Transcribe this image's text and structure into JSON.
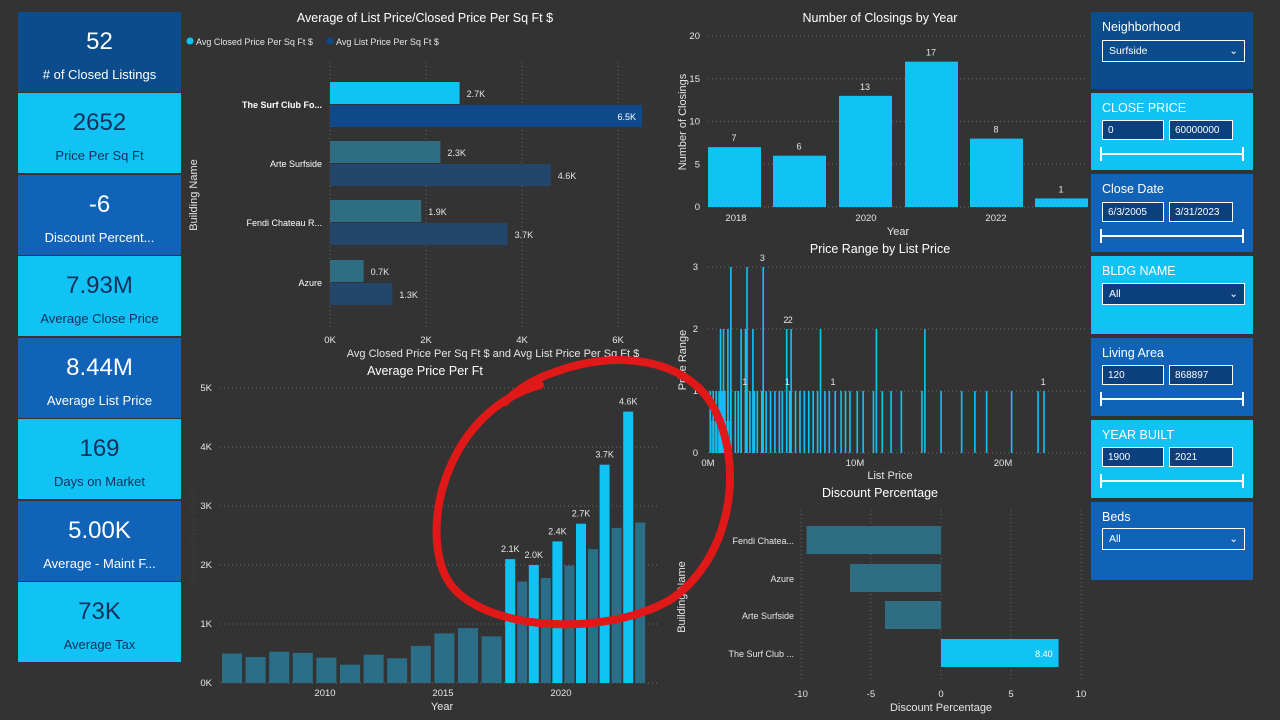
{
  "kpis": [
    {
      "value": "52",
      "label": "# of Closed Listings"
    },
    {
      "value": "2652",
      "label": "Price Per Sq Ft"
    },
    {
      "value": "-6",
      "label": "Discount Percent..."
    },
    {
      "value": "7.93M",
      "label": "Average Close Price"
    },
    {
      "value": "8.44M",
      "label": "Average List Price"
    },
    {
      "value": "169",
      "label": "Days on Market"
    },
    {
      "value": "5.00K",
      "label": "Average - Maint F..."
    },
    {
      "value": "73K",
      "label": "Average Tax"
    }
  ],
  "filters": {
    "neighborhood": {
      "label": "Neighborhood",
      "value": "Surfside"
    },
    "close_price": {
      "label": "CLOSE PRICE",
      "min": "0",
      "max": "60000000"
    },
    "close_date": {
      "label": "Close Date",
      "min": "6/3/2005",
      "max": "3/31/2023"
    },
    "bldg_name": {
      "label": "BLDG NAME",
      "value": "All"
    },
    "living_area": {
      "label": "Living Area",
      "min": "120",
      "max": "868897"
    },
    "year_built": {
      "label": "YEAR BUILT",
      "min": "1900",
      "max": "2021"
    },
    "beds": {
      "label": "Beds",
      "value": "All"
    }
  },
  "colors": {
    "cyan": "#11c3f5",
    "navy": "#0f4a8a",
    "teal": "#2b6e87",
    "annotation": "#e01818"
  },
  "chart_data": [
    {
      "type": "bar",
      "orientation": "horizontal",
      "title": "Average of List Price/Closed Price Per Sq Ft $",
      "xlabel": "Avg Closed Price Per Sq Ft $ and Avg List Price Per Sq Ft $",
      "ylabel": "Building Name",
      "legend": [
        "Avg Closed Price Per Sq Ft $",
        "Avg List Price Per Sq Ft $"
      ],
      "categories": [
        "The Surf Club Fo...",
        "Arte Surfside",
        "Fendi Chateau R...",
        "Azure"
      ],
      "series": [
        {
          "name": "Avg Closed Price Per Sq Ft $",
          "values": [
            2700,
            2300,
            1900,
            700
          ],
          "labels": [
            "2.7K",
            "2.3K",
            "1.9K",
            "0.7K"
          ]
        },
        {
          "name": "Avg List Price Per Sq Ft $",
          "values": [
            6500,
            4600,
            3700,
            1300
          ],
          "labels": [
            "6.5K",
            "4.6K",
            "3.7K",
            "1.3K"
          ]
        }
      ],
      "xticks": [
        "0K",
        "2K",
        "4K",
        "6K"
      ],
      "xlim": [
        0,
        6500
      ]
    },
    {
      "type": "bar",
      "title": "Number of Closings by Year",
      "xlabel": "Year",
      "ylabel": "Number of Closings",
      "categories": [
        2018,
        2019,
        2020,
        2021,
        2022,
        2023
      ],
      "values": [
        7,
        6,
        13,
        17,
        8,
        1
      ],
      "xticks": [
        "2018",
        "2020",
        "2022"
      ],
      "yticks": [
        "0",
        "5",
        "10",
        "15",
        "20"
      ],
      "ylim": [
        0,
        20
      ]
    },
    {
      "type": "bar",
      "title": "Price Range by List Price",
      "xlabel": "List Price",
      "ylabel": "Price Range",
      "xticks": [
        "0M",
        "10M",
        "20M"
      ],
      "yticks": [
        "0",
        "1",
        "2",
        "3"
      ],
      "ylim": [
        0,
        3
      ],
      "annotations": [
        {
          "x": 3.7,
          "y": 3,
          "label": "3"
        },
        {
          "x": 5.3,
          "y": 2,
          "label": "2"
        },
        {
          "x": 5.6,
          "y": 2,
          "label": "2"
        },
        {
          "x": 2.5,
          "y": 1,
          "label": "1"
        },
        {
          "x": 5.4,
          "y": 1,
          "label": "1"
        },
        {
          "x": 8.5,
          "y": 1,
          "label": "1"
        },
        {
          "x": 22.8,
          "y": 1,
          "label": "1"
        }
      ]
    },
    {
      "type": "bar",
      "title": "Average Price Per Ft",
      "xlabel": "Year",
      "ylabel": "Average Price Per Ft",
      "xticks": [
        "2010",
        "2015",
        "2020"
      ],
      "yticks": [
        "0K",
        "1K",
        "2K",
        "3K",
        "4K",
        "5K"
      ],
      "ylim": [
        0,
        5000
      ],
      "series": [
        {
          "name": "",
          "x": [
            2006,
            2007,
            2008,
            2009,
            2010,
            2011,
            2012,
            2013,
            2014,
            2015,
            2016,
            2017,
            2018,
            2019,
            2020,
            2021,
            2022,
            2023
          ],
          "values": [
            500,
            440,
            530,
            510,
            430,
            310,
            480,
            420,
            630,
            840,
            930,
            790,
            1720,
            1780,
            1990,
            2270,
            2630,
            2720
          ]
        },
        {
          "name": "",
          "x": [
            2018,
            2019,
            2020,
            2021,
            2022,
            2023
          ],
          "values": [
            2100,
            2000,
            2400,
            2700,
            3700,
            4600
          ],
          "labels": [
            "2.1K",
            "2.0K",
            "2.4K",
            "2.7K",
            "3.7K",
            "4.6K"
          ]
        }
      ]
    },
    {
      "type": "bar",
      "orientation": "horizontal",
      "title": "Discount Percentage",
      "xlabel": "Discount Percentage",
      "ylabel": "Building Name",
      "categories": [
        "Fendi Chatea...",
        "Azure",
        "Arte Surfside",
        "The Surf Club ..."
      ],
      "values": [
        -9.6,
        -6.5,
        -4.0,
        8.4
      ],
      "value_labels": [
        "",
        "",
        "",
        "8.40"
      ],
      "xticks": [
        "-10",
        "-5",
        "0",
        "5",
        "10"
      ],
      "xlim": [
        -10,
        10
      ]
    }
  ]
}
